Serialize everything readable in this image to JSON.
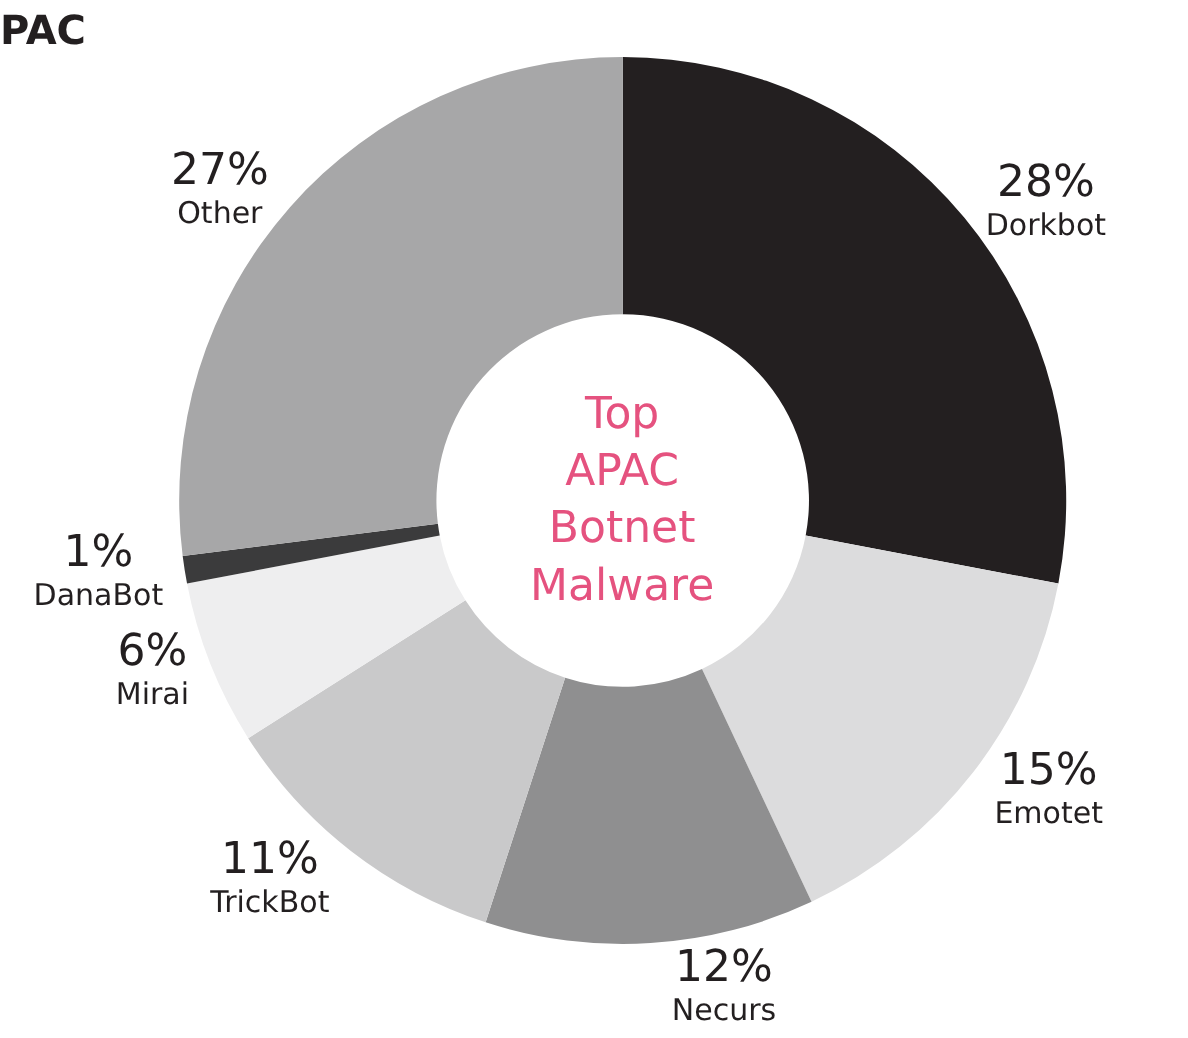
{
  "chart_data": {
    "type": "donut",
    "title": "PAC",
    "annotations": [
      "Top\nAPAC\nBotnet\nMalware"
    ],
    "categories": [
      "Dorkbot",
      "Emotet",
      "Necurs",
      "TrickBot",
      "Mirai",
      "DanaBot",
      "Other"
    ],
    "values": [
      28,
      15,
      12,
      11,
      6,
      1,
      27
    ],
    "colors": [
      "#231f20",
      "#dcdcdd",
      "#8f8f90",
      "#c9c9ca",
      "#eeeeef",
      "#3b3b3c",
      "#a7a7a8"
    ],
    "value_labels": [
      "28%",
      "15%",
      "12%",
      "11%",
      "6%",
      "1%",
      "27%"
    ],
    "legend": false
  }
}
